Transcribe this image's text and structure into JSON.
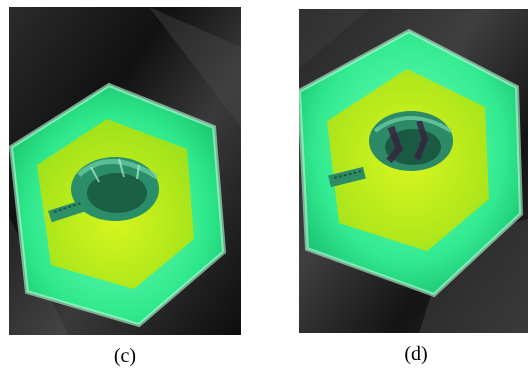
{
  "figure": {
    "panels": [
      {
        "caption": "(c)"
      },
      {
        "caption": "(d)"
      }
    ]
  },
  "colors": {
    "background": "#ffffff",
    "tray_glow": "#33f29a",
    "tray_inner": "#b8ef1e",
    "specimen": "#2a8e6a",
    "dark_surface": "#1e1e1e"
  }
}
